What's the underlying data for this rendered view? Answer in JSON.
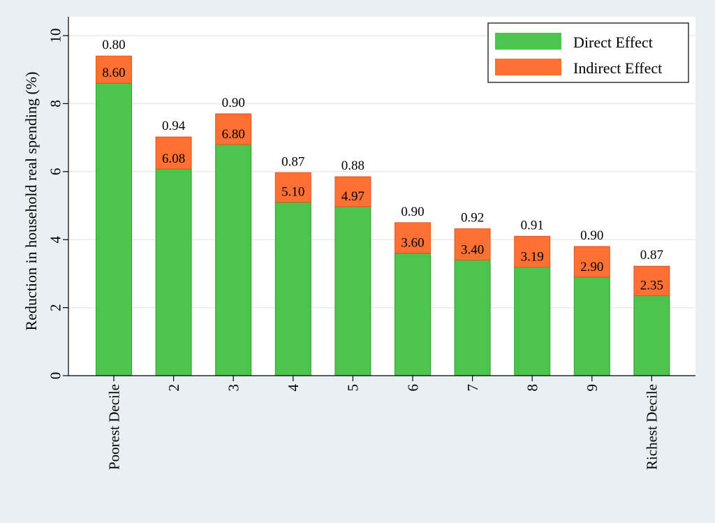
{
  "chart_data": {
    "type": "bar",
    "stacked": true,
    "ylabel": "Reduction in household real spending (%)",
    "xlabel": "",
    "ylim": [
      0,
      10
    ],
    "yticks": [
      0,
      2,
      4,
      6,
      8,
      10
    ],
    "grid": true,
    "legend_position": "top-right",
    "categories": [
      "Poorest Decile",
      "2",
      "3",
      "4",
      "5",
      "6",
      "7",
      "8",
      "9",
      "Richest Decile"
    ],
    "series": [
      {
        "name": "Direct Effect",
        "color": "#4dc44d",
        "values": [
          8.6,
          6.08,
          6.8,
          5.1,
          4.97,
          3.6,
          3.4,
          3.19,
          2.9,
          2.35
        ],
        "labels": [
          "8.60",
          "6.08",
          "6.80",
          "5.10",
          "4.97",
          "3.60",
          "3.40",
          "3.19",
          "2.90",
          "2.35"
        ]
      },
      {
        "name": "Indirect Effect",
        "color": "#ff7035",
        "values": [
          0.8,
          0.94,
          0.9,
          0.87,
          0.88,
          0.9,
          0.92,
          0.91,
          0.9,
          0.87
        ],
        "labels": [
          "0.80",
          "0.94",
          "0.90",
          "0.87",
          "0.88",
          "0.90",
          "0.92",
          "0.91",
          "0.90",
          "0.87"
        ]
      }
    ]
  }
}
